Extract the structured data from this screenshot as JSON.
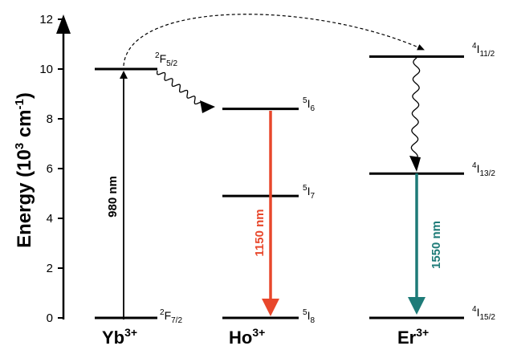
{
  "axis": {
    "label_main": "Energy (10",
    "label_exp": "3",
    "label_unit": " cm",
    "label_unit_exp": "-1",
    "label_close": ")",
    "ticks": [
      "0",
      "2",
      "4",
      "6",
      "8",
      "10",
      "12"
    ]
  },
  "ions": {
    "yb": {
      "symbol": "Yb",
      "charge": "3+"
    },
    "ho": {
      "symbol": "Ho",
      "charge": "3+"
    },
    "er": {
      "symbol": "Er",
      "charge": "3+"
    }
  },
  "levels": {
    "yb_ground": {
      "energy": 0,
      "pre": "2",
      "letter": "F",
      "sub": "7/2"
    },
    "yb_excited": {
      "energy": 10,
      "pre": "2",
      "letter": "F",
      "sub": "5/2"
    },
    "ho_8": {
      "energy": 0,
      "pre": "5",
      "letter": "I",
      "sub": "8"
    },
    "ho_7": {
      "energy": 4.9,
      "pre": "5",
      "letter": "I",
      "sub": "7"
    },
    "ho_6": {
      "energy": 8.4,
      "pre": "5",
      "letter": "I",
      "sub": "6"
    },
    "er_15": {
      "energy": 0,
      "pre": "4",
      "letter": "I",
      "sub": "15/2"
    },
    "er_13": {
      "energy": 5.8,
      "pre": "4",
      "letter": "I",
      "sub": "13/2"
    },
    "er_11": {
      "energy": 10.5,
      "pre": "4",
      "letter": "I",
      "sub": "11/2"
    }
  },
  "transitions": {
    "pump": {
      "label": "980 nm",
      "color": "#000000"
    },
    "ho_emission": {
      "label": "1150 nm",
      "color": "#e8472b"
    },
    "er_emission": {
      "label": "1550 nm",
      "color": "#1e7b78"
    }
  }
}
